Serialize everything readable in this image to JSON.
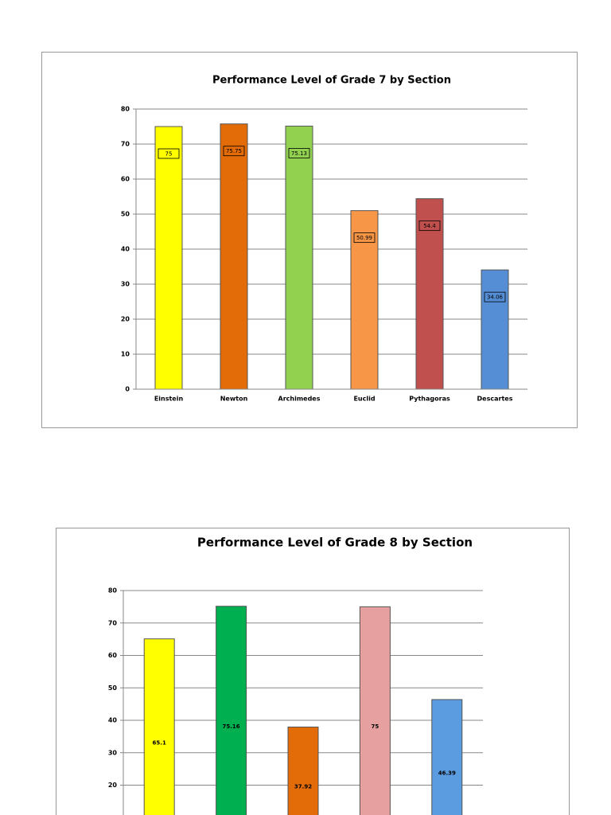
{
  "chart_data": [
    {
      "type": "bar",
      "title": "Performance Level of Grade 7 by Section",
      "categories": [
        "Einstein",
        "Newton",
        "Archimedes",
        "Euclid",
        "Pythagoras",
        "Descartes"
      ],
      "values": [
        75,
        75.75,
        75.13,
        50.99,
        54.4,
        34.06
      ],
      "colors": [
        "#ffff00",
        "#e36c09",
        "#92d050",
        "#f79646",
        "#c0504d",
        "#558ed5"
      ],
      "ylim": [
        0,
        80
      ],
      "yticks": [
        0,
        10,
        20,
        30,
        40,
        50,
        60,
        70,
        80
      ],
      "grid": true
    },
    {
      "type": "bar",
      "title": "Performance Level of Grade 8 by Section",
      "values": [
        65.1,
        75.16,
        37.92,
        75,
        46.39
      ],
      "colors": [
        "#ffff00",
        "#00b050",
        "#e36c09",
        "#e6a0a0",
        "#5b9be0"
      ],
      "ylim": [
        0,
        80
      ],
      "yticks": [
        20,
        30,
        40,
        50,
        60,
        70,
        80
      ],
      "grid": true
    }
  ]
}
